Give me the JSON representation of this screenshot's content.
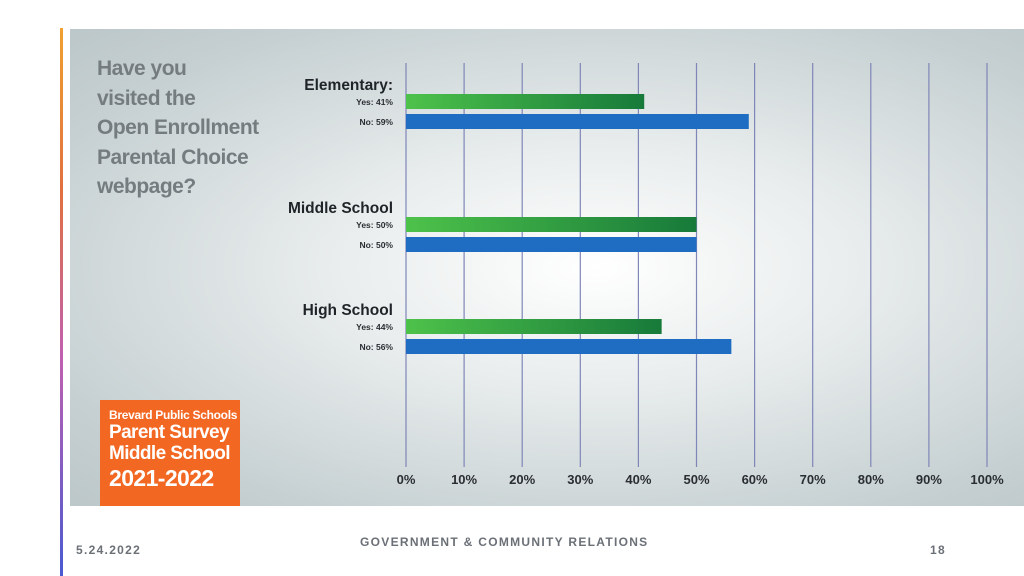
{
  "question_lines": [
    "Have you",
    "visited the",
    "Open Enrollment",
    "Parental Choice",
    "webpage?"
  ],
  "badge": {
    "line1": "Brevard Public Schools",
    "line2": "Parent Survey",
    "line3": "Middle School",
    "line4": "2021-2022"
  },
  "footer": {
    "date": "5.24.2022",
    "center": "GOVERNMENT & COMMUNITY RELATIONS",
    "page": "18"
  },
  "colors": {
    "yes_start": "#4dc24a",
    "yes_end": "#177a3a",
    "no": "#1f6dc2",
    "grid": "#7f86b8",
    "badge": "#f26722"
  },
  "chart_data": {
    "type": "bar",
    "orientation": "horizontal",
    "xlim": [
      0,
      100
    ],
    "x_ticks": [
      "0%",
      "10%",
      "20%",
      "30%",
      "40%",
      "50%",
      "60%",
      "70%",
      "80%",
      "90%",
      "100%"
    ],
    "groups": [
      {
        "name": "Elementary:",
        "bars": [
          {
            "label": "Yes: 41%",
            "value": 41,
            "kind": "yes"
          },
          {
            "label": "No: 59%",
            "value": 59,
            "kind": "no"
          }
        ]
      },
      {
        "name": "Middle School",
        "bars": [
          {
            "label": "Yes: 50%",
            "value": 50,
            "kind": "yes"
          },
          {
            "label": "No: 50%",
            "value": 50,
            "kind": "no"
          }
        ]
      },
      {
        "name": "High School",
        "bars": [
          {
            "label": "Yes: 44%",
            "value": 44,
            "kind": "yes"
          },
          {
            "label": "No: 56%",
            "value": 56,
            "kind": "no"
          }
        ]
      }
    ],
    "grid": true
  }
}
